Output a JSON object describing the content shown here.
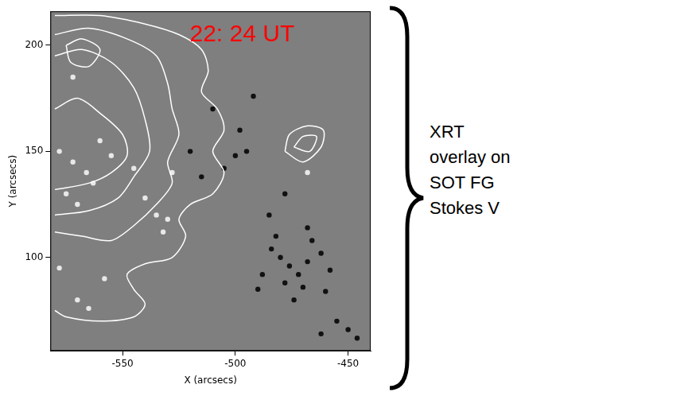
{
  "chart_data": {
    "type": "scatter",
    "x_label": "X (arcsecs)",
    "y_label": "Y (arcsecs)",
    "xlim": [
      -582,
      -440
    ],
    "xticks": [
      -550,
      -500,
      -450
    ],
    "ylim": [
      56,
      216
    ],
    "yticks": [
      100,
      150,
      200
    ],
    "grid": false,
    "annotations": [
      {
        "text": "22: 24 UT",
        "x": -497,
        "y": 205,
        "color": "#ff0000"
      }
    ],
    "series": [
      {
        "color": "#ffffff",
        "marker": "none",
        "line_style": "solid",
        "x": [
          -580,
          -560,
          -540,
          -525,
          -515,
          -512,
          -515,
          -508,
          -505,
          -510,
          -505,
          -510,
          -520,
          -525,
          -522,
          -528,
          -540,
          -548,
          -545,
          -540,
          -545,
          -560,
          -575,
          -580
        ],
        "y": [
          214,
          214,
          210,
          205,
          198,
          188,
          178,
          170,
          160,
          150,
          140,
          130,
          125,
          118,
          110,
          100,
          97,
          92,
          85,
          78,
          72,
          70,
          72,
          75
        ]
      },
      {
        "color": "#ffffff",
        "marker": "none",
        "line_style": "solid",
        "x": [
          -580,
          -565,
          -548,
          -535,
          -530,
          -528,
          -525,
          -530,
          -528,
          -535,
          -545,
          -555,
          -568,
          -580
        ],
        "y": [
          205,
          208,
          203,
          195,
          182,
          170,
          158,
          145,
          135,
          125,
          115,
          108,
          110,
          112
        ]
      },
      {
        "color": "#ffffff",
        "marker": "none",
        "line_style": "solid",
        "x": [
          -580,
          -568,
          -555,
          -545,
          -540,
          -538,
          -545,
          -552,
          -565,
          -580
        ],
        "y": [
          195,
          198,
          192,
          180,
          165,
          150,
          138,
          128,
          122,
          120
        ]
      },
      {
        "color": "#ffffff",
        "marker": "none",
        "line_style": "solid",
        "x": [
          -580,
          -570,
          -560,
          -550,
          -548,
          -555,
          -565,
          -580
        ],
        "y": [
          170,
          175,
          168,
          158,
          148,
          140,
          135,
          132
        ]
      },
      {
        "color": "#ffffff",
        "marker": "none",
        "line_style": "solid",
        "x": [
          -575,
          -568,
          -560,
          -565,
          -573,
          -575
        ],
        "y": [
          200,
          203,
          198,
          190,
          192,
          200
        ]
      },
      {
        "color": "#ffffff",
        "marker": "none",
        "line_style": "solid",
        "x": [
          -478,
          -476,
          -468,
          -461,
          -462,
          -470,
          -478
        ],
        "y": [
          150,
          158,
          162,
          160,
          152,
          145,
          150
        ]
      },
      {
        "color": "#ffffff",
        "marker": "none",
        "line_style": "solid",
        "x": [
          -474,
          -470,
          -464,
          -467,
          -474
        ],
        "y": [
          152,
          157,
          157,
          150,
          152
        ]
      },
      {
        "color": "#111111",
        "marker": "circle",
        "line_style": "none",
        "x": [
          -480,
          -476,
          -472,
          -468,
          -484,
          -478,
          -470,
          -462,
          -458,
          -488,
          -482,
          -466,
          -460,
          -474,
          -490,
          -495,
          -500,
          -505,
          -520,
          -515,
          -498,
          -455,
          -450,
          -462,
          -446,
          -485,
          -510,
          -492,
          -478,
          -468
        ],
        "y": [
          100,
          96,
          92,
          98,
          104,
          88,
          86,
          102,
          94,
          92,
          110,
          108,
          84,
          80,
          85,
          150,
          148,
          142,
          150,
          138,
          160,
          70,
          66,
          64,
          62,
          120,
          170,
          176,
          130,
          114
        ]
      },
      {
        "color": "#e8e8e8",
        "marker": "circle",
        "line_style": "none",
        "x": [
          -578,
          -572,
          -566,
          -560,
          -555,
          -575,
          -570,
          -563,
          -545,
          -540,
          -535,
          -530,
          -532,
          -528,
          -570,
          -565,
          -578,
          -558,
          -468,
          -572
        ],
        "y": [
          150,
          145,
          140,
          155,
          148,
          130,
          125,
          135,
          142,
          128,
          120,
          118,
          112,
          140,
          80,
          76,
          95,
          90,
          140,
          185
        ]
      }
    ]
  },
  "side_label": [
    "XRT",
    "overlay on",
    "SOT FG",
    "Stokes V"
  ]
}
